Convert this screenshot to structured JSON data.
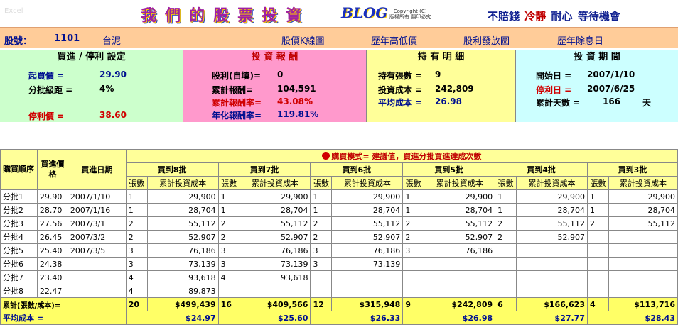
{
  "header": {
    "corner": "Excel",
    "title": "我們的股票投資",
    "blog": "BLOG",
    "copyright_line1": "Copyright (C)",
    "copyright_line2": "版權所有 翻印必究",
    "motto_a": "不賠錢",
    "motto_b": "冷靜",
    "motto_c": "耐心",
    "motto_d": "等待機會"
  },
  "stock": {
    "label": "股號：",
    "code": "1101",
    "name": "台泥",
    "links": [
      "股價K線圖",
      "歷年高低價",
      "股利發放圖",
      "歷年除息日"
    ]
  },
  "panel_colors": {
    "buy": "#ccffcc",
    "ret": "#ff99cc",
    "hold": "#ffff99",
    "period": "#ccffff"
  },
  "buy_setting": {
    "title": "買進 / 停利 設定",
    "l1": "起買價 =",
    "v1": "29.90",
    "l2": "分批級距 =",
    "v2": "4%",
    "l3": "停利價 =",
    "v3": "38.60"
  },
  "returns": {
    "title": "投 資 報 酬",
    "l1": "股利(自填)=",
    "v1": "0",
    "l2": "累計報酬=",
    "v2": "104,591",
    "l3": "累計報酬率=",
    "v3": "43.08%",
    "l4": "年化報酬率=",
    "v4": "119.81%"
  },
  "holding": {
    "title": "持 有 明 細",
    "l1": "持有張數 =",
    "v1": "9",
    "l2": "投資成本 =",
    "v2": "242,809",
    "l3": "平均成本 =",
    "v3": "26.98"
  },
  "period": {
    "title": "投 資 期 間",
    "l1": "開始日 =",
    "v1": "2007/1/10",
    "l2": "停利日 =",
    "v2": "2007/6/25",
    "l3": "累計天數 =",
    "v3": "166",
    "u3": "天"
  },
  "table": {
    "mode": "購買模式= 建議值，買進分批買進達成次數",
    "col_order": "購買順序",
    "col_price": "買進價格",
    "col_date": "買進日期",
    "batches": [
      "買到8批",
      "買到7批",
      "買到6批",
      "買到5批",
      "買到4批",
      "買到3批"
    ],
    "sub_qty": "張數",
    "sub_cost": "累計投資成本",
    "rows": [
      {
        "o": "分批1",
        "p": "29.90",
        "d": "2007/1/10",
        "c": [
          [
            "1",
            "29,900"
          ],
          [
            "1",
            "29,900"
          ],
          [
            "1",
            "29,900"
          ],
          [
            "1",
            "29,900"
          ],
          [
            "1",
            "29,900"
          ],
          [
            "1",
            "29,900"
          ]
        ]
      },
      {
        "o": "分批2",
        "p": "28.70",
        "d": "2007/1/16",
        "c": [
          [
            "1",
            "28,704"
          ],
          [
            "1",
            "28,704"
          ],
          [
            "1",
            "28,704"
          ],
          [
            "1",
            "28,704"
          ],
          [
            "1",
            "28,704"
          ],
          [
            "1",
            "28,704"
          ]
        ]
      },
      {
        "o": "分批3",
        "p": "27.56",
        "d": "2007/3/1",
        "c": [
          [
            "2",
            "55,112"
          ],
          [
            "2",
            "55,112"
          ],
          [
            "2",
            "55,112"
          ],
          [
            "2",
            "55,112"
          ],
          [
            "2",
            "55,112"
          ],
          [
            "2",
            "55,112"
          ]
        ]
      },
      {
        "o": "分批4",
        "p": "26.45",
        "d": "2007/3/2",
        "c": [
          [
            "2",
            "52,907"
          ],
          [
            "2",
            "52,907"
          ],
          [
            "2",
            "52,907"
          ],
          [
            "2",
            "52,907"
          ],
          [
            "2",
            "52,907"
          ],
          [
            "",
            ""
          ]
        ]
      },
      {
        "o": "分批5",
        "p": "25.40",
        "d": "2007/3/5",
        "c": [
          [
            "3",
            "76,186"
          ],
          [
            "3",
            "76,186"
          ],
          [
            "3",
            "76,186"
          ],
          [
            "3",
            "76,186"
          ],
          [
            "",
            ""
          ],
          [
            "",
            ""
          ]
        ]
      },
      {
        "o": "分批6",
        "p": "24.38",
        "d": "",
        "c": [
          [
            "3",
            "73,139"
          ],
          [
            "3",
            "73,139"
          ],
          [
            "3",
            "73,139"
          ],
          [
            "",
            ""
          ],
          [
            "",
            ""
          ],
          [
            "",
            ""
          ]
        ]
      },
      {
        "o": "分批7",
        "p": "23.40",
        "d": "",
        "c": [
          [
            "4",
            "93,618"
          ],
          [
            "4",
            "93,618"
          ],
          [
            "",
            ""
          ],
          [
            "",
            ""
          ],
          [
            "",
            ""
          ],
          [
            "",
            ""
          ]
        ]
      },
      {
        "o": "分批8",
        "p": "22.47",
        "d": "",
        "c": [
          [
            "4",
            "89,873"
          ],
          [
            "",
            ""
          ],
          [
            "",
            ""
          ],
          [
            "",
            ""
          ],
          [
            "",
            ""
          ],
          [
            "",
            ""
          ]
        ]
      }
    ],
    "sum_label": "累計(張數/成本)=",
    "sums": [
      [
        "20",
        "$499,439"
      ],
      [
        "16",
        "$409,566"
      ],
      [
        "12",
        "$315,948"
      ],
      [
        "9",
        "$242,809"
      ],
      [
        "6",
        "$166,623"
      ],
      [
        "4",
        "$113,716"
      ]
    ],
    "avg_label": "平均成本 =",
    "avgs": [
      "$24.97",
      "$25.60",
      "$26.33",
      "$26.98",
      "$27.77",
      "$28.43"
    ]
  }
}
